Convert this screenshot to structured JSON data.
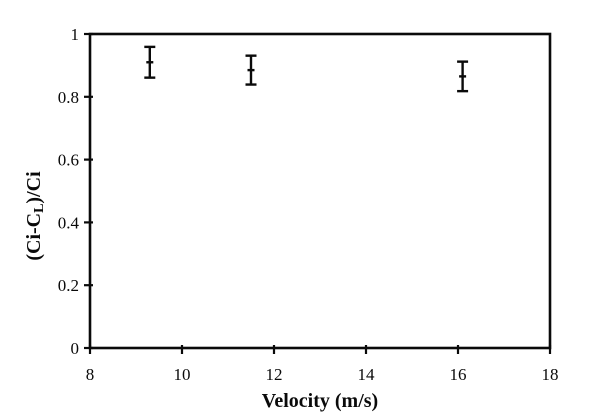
{
  "figure": {
    "background_color": "#ffffff",
    "ink_color": "#0a0a0a"
  },
  "chart_data": {
    "type": "scatter",
    "title": "",
    "xlabel": "Velocity (m/s)",
    "ylabel": "(Ci-CL)/Ci",
    "ylabel_parts": [
      {
        "text": "(Ci-C"
      },
      {
        "text": "L",
        "subscript": true
      },
      {
        "text": ")/Ci"
      }
    ],
    "xlim": [
      8,
      18
    ],
    "ylim": [
      0,
      1
    ],
    "x_ticks": [
      8,
      10,
      12,
      14,
      16,
      18
    ],
    "x_tick_labels": [
      "8",
      "10",
      "12",
      "14",
      "16",
      "18"
    ],
    "y_ticks": [
      0,
      0.2,
      0.4,
      0.6,
      0.8,
      1
    ],
    "y_tick_labels": [
      "0",
      "0.2",
      "0.4",
      "0.6",
      "0.8",
      "1"
    ],
    "grid": false,
    "legend": false,
    "series": [
      {
        "marker": "horizontal-dash-with-error-bars",
        "points": [
          {
            "x": 9.3,
            "y": 0.91,
            "err": 0.049
          },
          {
            "x": 11.5,
            "y": 0.885,
            "err": 0.046
          },
          {
            "x": 16.1,
            "y": 0.865,
            "err": 0.047
          }
        ]
      }
    ]
  }
}
